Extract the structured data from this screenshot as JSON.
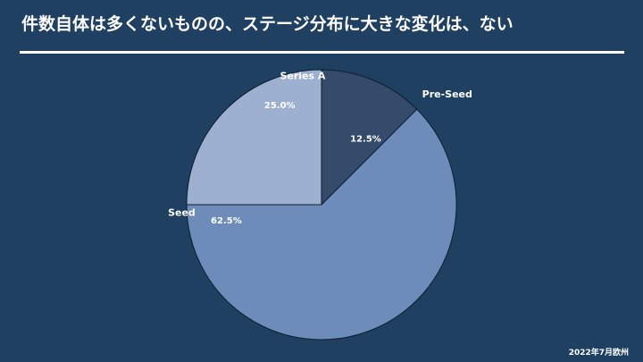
{
  "slide": {
    "title": "件数自体は多くないものの、ステージ分布に大きな変化は、ない",
    "footer": "2022年7月欧州"
  },
  "colors": {
    "background": "#1f4060",
    "Pre-Seed": "#354b6b",
    "Seed": "#6d8cb9",
    "Series A": "#9db0d0"
  },
  "chart_data": {
    "type": "pie",
    "start": "12 o'clock",
    "direction": "clockwise",
    "slices": [
      {
        "label": "Pre-Seed",
        "value": 12.5,
        "data_label": "12.5%"
      },
      {
        "label": "Seed",
        "value": 62.5,
        "data_label": "62.5%"
      },
      {
        "label": "Series A",
        "value": 25.0,
        "data_label": "25.0%"
      }
    ]
  }
}
